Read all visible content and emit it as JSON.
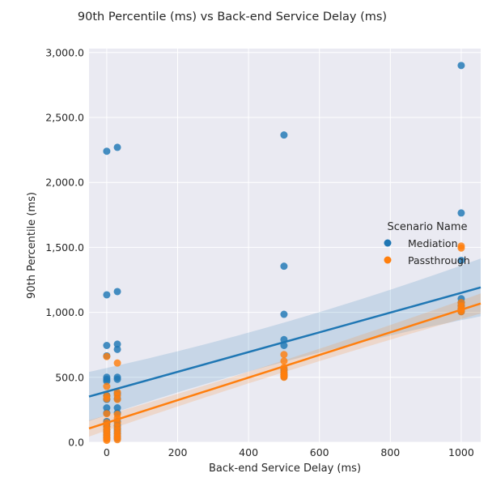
{
  "chart_data": {
    "type": "scatter",
    "title": "90th Percentile (ms) vs Back-end Service Delay (ms)",
    "xlabel": "Back-end Service Delay (ms)",
    "ylabel": "90th Percentile (ms)",
    "xlim": [
      -50,
      1055
    ],
    "ylim": [
      0,
      3030
    ],
    "x_ticks": [
      0,
      200,
      400,
      600,
      800,
      1000
    ],
    "x_tick_labels": [
      "0",
      "200",
      "400",
      "600",
      "800",
      "1000"
    ],
    "y_ticks": [
      0,
      500,
      1000,
      1500,
      2000,
      2500,
      3000
    ],
    "y_tick_labels": [
      "0.0",
      "500.0",
      "1,000.0",
      "1,500.0",
      "2,000.0",
      "2,500.0",
      "3,000.0"
    ],
    "grid": true,
    "legend": {
      "title": "Scenario Name",
      "position": "right"
    },
    "series": [
      {
        "name": "Mediation",
        "color": "#1f77b4",
        "points": [
          [
            0,
            2240
          ],
          [
            0,
            1135
          ],
          [
            0,
            745
          ],
          [
            0,
            665
          ],
          [
            0,
            500
          ],
          [
            0,
            485
          ],
          [
            0,
            470
          ],
          [
            0,
            360
          ],
          [
            0,
            330
          ],
          [
            0,
            265
          ],
          [
            0,
            225
          ],
          [
            0,
            160
          ],
          [
            0,
            140
          ],
          [
            0,
            120
          ],
          [
            0,
            95
          ],
          [
            0,
            75
          ],
          [
            0,
            55
          ],
          [
            0,
            35
          ],
          [
            30,
            2270
          ],
          [
            30,
            1160
          ],
          [
            30,
            755
          ],
          [
            30,
            715
          ],
          [
            30,
            500
          ],
          [
            30,
            485
          ],
          [
            30,
            375
          ],
          [
            30,
            335
          ],
          [
            30,
            265
          ],
          [
            30,
            225
          ],
          [
            30,
            160
          ],
          [
            30,
            130
          ],
          [
            30,
            105
          ],
          [
            30,
            85
          ],
          [
            30,
            65
          ],
          [
            30,
            45
          ],
          [
            30,
            30
          ],
          [
            500,
            2365
          ],
          [
            500,
            1355
          ],
          [
            500,
            985
          ],
          [
            500,
            790
          ],
          [
            500,
            745
          ],
          [
            500,
            560
          ],
          [
            500,
            540
          ],
          [
            500,
            520
          ],
          [
            500,
            505
          ],
          [
            1000,
            2900
          ],
          [
            1000,
            1765
          ],
          [
            1000,
            1400
          ],
          [
            1000,
            1105
          ],
          [
            1000,
            1075
          ],
          [
            1000,
            1050
          ],
          [
            1000,
            1025
          ],
          [
            1000,
            1005
          ]
        ],
        "regression": {
          "intercept": 390,
          "slope": 0.76
        }
      },
      {
        "name": "Passthrough",
        "color": "#ff7f0e",
        "points": [
          [
            0,
            660
          ],
          [
            0,
            430
          ],
          [
            0,
            355
          ],
          [
            0,
            335
          ],
          [
            0,
            220
          ],
          [
            0,
            150
          ],
          [
            0,
            120
          ],
          [
            0,
            100
          ],
          [
            0,
            80
          ],
          [
            0,
            60
          ],
          [
            0,
            40
          ],
          [
            0,
            25
          ],
          [
            0,
            15
          ],
          [
            30,
            610
          ],
          [
            30,
            385
          ],
          [
            30,
            360
          ],
          [
            30,
            330
          ],
          [
            30,
            215
          ],
          [
            30,
            185
          ],
          [
            30,
            150
          ],
          [
            30,
            120
          ],
          [
            30,
            95
          ],
          [
            30,
            70
          ],
          [
            30,
            50
          ],
          [
            30,
            35
          ],
          [
            30,
            20
          ],
          [
            500,
            675
          ],
          [
            500,
            625
          ],
          [
            500,
            575
          ],
          [
            500,
            550
          ],
          [
            500,
            530
          ],
          [
            500,
            520
          ],
          [
            500,
            510
          ],
          [
            500,
            500
          ],
          [
            1000,
            1510
          ],
          [
            1000,
            1495
          ],
          [
            1000,
            1075
          ],
          [
            1000,
            1050
          ],
          [
            1000,
            1030
          ],
          [
            1000,
            1015
          ],
          [
            1000,
            1005
          ]
        ],
        "regression": {
          "intercept": 150,
          "slope": 0.87
        }
      }
    ]
  }
}
